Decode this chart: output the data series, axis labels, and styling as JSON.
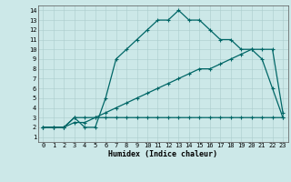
{
  "xlabel": "Humidex (Indice chaleur)",
  "xlim": [
    -0.5,
    23.5
  ],
  "ylim": [
    0.5,
    14.5
  ],
  "xticks": [
    0,
    1,
    2,
    3,
    4,
    5,
    6,
    7,
    8,
    9,
    10,
    11,
    12,
    13,
    14,
    15,
    16,
    17,
    18,
    19,
    20,
    21,
    22,
    23
  ],
  "yticks": [
    1,
    2,
    3,
    4,
    5,
    6,
    7,
    8,
    9,
    10,
    11,
    12,
    13,
    14
  ],
  "bg_color": "#cce8e8",
  "line_color": "#006666",
  "curve1_x": [
    0,
    1,
    2,
    3,
    4,
    5,
    6,
    7,
    8,
    9,
    10,
    11,
    12,
    13,
    14,
    15,
    16,
    17,
    18,
    19,
    20,
    21,
    22,
    23
  ],
  "curve1_y": [
    2,
    2,
    2,
    3,
    2,
    2,
    5,
    9,
    10,
    11,
    12,
    13,
    13,
    14,
    13,
    13,
    12,
    11,
    11,
    10,
    10,
    9,
    6,
    3
  ],
  "curve2_x": [
    0,
    1,
    2,
    3,
    4,
    5,
    6,
    7,
    8,
    9,
    10,
    11,
    12,
    13,
    14,
    15,
    16,
    17,
    18,
    19,
    20,
    21,
    22,
    23
  ],
  "curve2_y": [
    2,
    2,
    2,
    3,
    3,
    3,
    3.5,
    4,
    4.5,
    5,
    5.5,
    6,
    6.5,
    7,
    7.5,
    8,
    8,
    8.5,
    9,
    9.5,
    10,
    10,
    10,
    3.5
  ],
  "curve3_x": [
    0,
    1,
    2,
    3,
    4,
    5,
    6,
    7,
    8,
    9,
    10,
    11,
    12,
    13,
    14,
    15,
    16,
    17,
    18,
    19,
    20,
    21,
    22,
    23
  ],
  "curve3_y": [
    2,
    2,
    2,
    2.5,
    2.5,
    3,
    3,
    3,
    3,
    3,
    3,
    3,
    3,
    3,
    3,
    3,
    3,
    3,
    3,
    3,
    3,
    3,
    3,
    3
  ],
  "marker": "+"
}
